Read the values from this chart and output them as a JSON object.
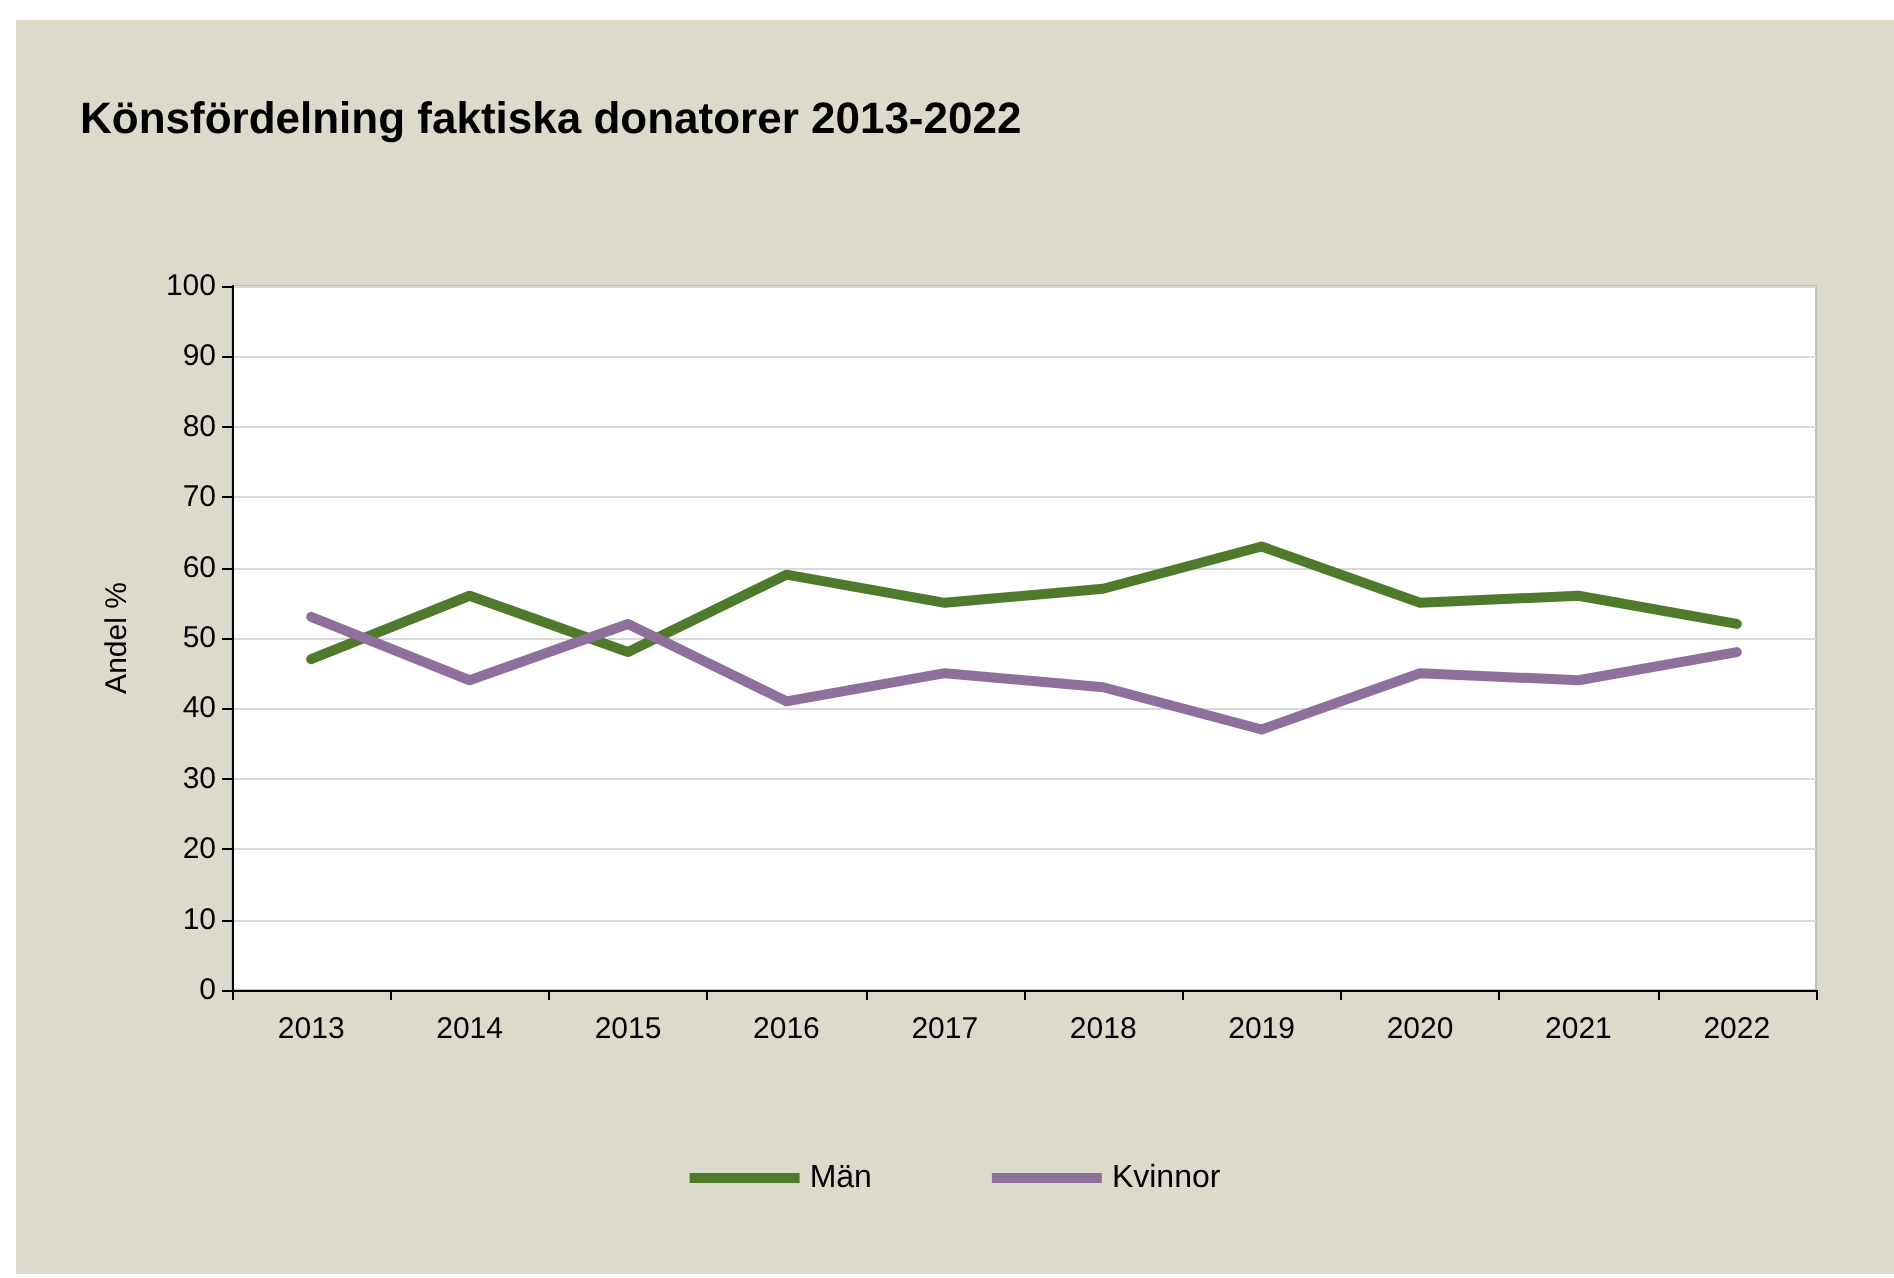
{
  "chart_data": {
    "type": "line",
    "title": "Könsfördelning faktiska donatorer 2013-2022",
    "ylabel": "Andel %",
    "categories": [
      "2013",
      "2014",
      "2015",
      "2016",
      "2017",
      "2018",
      "2019",
      "2020",
      "2021",
      "2022"
    ],
    "series": [
      {
        "name": "Män",
        "color": "#4f7a2c",
        "values": [
          47,
          56,
          48,
          59,
          55,
          57,
          63,
          55,
          56,
          52
        ]
      },
      {
        "name": "Kvinnor",
        "color": "#8f6f9b",
        "values": [
          53,
          44,
          52,
          41,
          45,
          43,
          37,
          45,
          44,
          48
        ]
      }
    ],
    "ylim": [
      0,
      100
    ],
    "yticks": [
      0,
      10,
      20,
      30,
      40,
      50,
      60,
      70,
      80,
      90,
      100
    ],
    "grid": "y",
    "legend": "bottom",
    "marker": "none",
    "line_style": "solid"
  }
}
